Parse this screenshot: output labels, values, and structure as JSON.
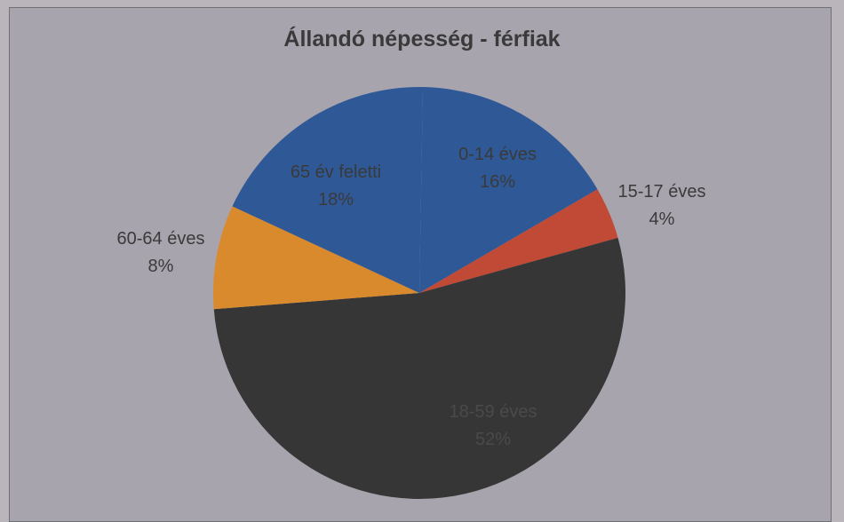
{
  "chart_data": {
    "type": "pie",
    "title": "Állandó népesség - férfiak",
    "slices": [
      {
        "label": "0-14 éves",
        "percent_label": "16%",
        "value": 16,
        "color": "#2f5896",
        "label_color": "#3a3a3a"
      },
      {
        "label": "15-17 éves",
        "percent_label": "4%",
        "value": 4,
        "color": "#c14a36",
        "label_color": "#3a3a3a"
      },
      {
        "label": "18-59 éves",
        "percent_label": "52%",
        "value": 52,
        "color": "#363636",
        "label_color": "#4a4a4a"
      },
      {
        "label": "60-64 éves",
        "percent_label": "8%",
        "value": 8,
        "color": "#d98a2c",
        "label_color": "#3a3a3a"
      },
      {
        "label": "65 év feletti",
        "percent_label": "18%",
        "value": 18,
        "color": "#2f5896",
        "label_color": "#3a3a3a"
      }
    ],
    "legend": "none",
    "data_labels": "category and percentage"
  }
}
